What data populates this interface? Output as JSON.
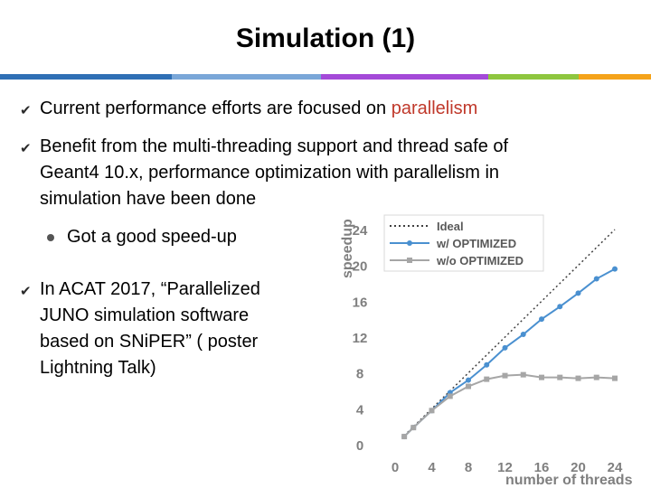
{
  "slide": {
    "title": "Simulation (1)",
    "accent_colors": [
      "#2f6fb5",
      "#7aa7d8",
      "#a44ad8",
      "#8ec63f",
      "#f5a31a"
    ]
  },
  "bullets": [
    {
      "icon": "checkmark-v-bullet-icon",
      "text_before": "Current performance efforts are focused on ",
      "highlight": "parallelism",
      "highlight_color": "#c0392b"
    },
    {
      "icon": "checkmark-v-bullet-icon",
      "lines": [
        "Benefit from the multi-threading support and thread safe of",
        "Geant4 10.x, performance optimization with parallelism in",
        "simulation have been done"
      ]
    },
    {
      "icon": "round-dot-bullet-icon",
      "text": "Got a good speed-up"
    },
    {
      "icon": "checkmark-v-bullet-icon",
      "lines": [
        "In ACAT 2017, “Parallelized",
        "JUNO simulation software",
        "based on SNiPER” ( poster",
        "Lightning Talk)"
      ]
    }
  ],
  "chart_data": {
    "type": "line",
    "xlabel": "number of threads",
    "ylabel": "speedup",
    "xlim": [
      0,
      24
    ],
    "ylim": [
      0,
      24
    ],
    "xticks": [
      0,
      4,
      8,
      12,
      16,
      20,
      24
    ],
    "yticks": [
      0,
      4,
      8,
      12,
      16,
      20,
      24
    ],
    "grid": false,
    "legend_position": "top-left",
    "series": [
      {
        "name": "Ideal",
        "color": "#404040",
        "style": "dotted",
        "x": [
          1,
          24
        ],
        "y": [
          1,
          24
        ]
      },
      {
        "name": "w/ OPTIMIZED",
        "color": "#4a90d0",
        "style": "solid",
        "x": [
          1,
          2,
          4,
          6,
          8,
          10,
          12,
          14,
          16,
          18,
          20,
          22,
          24
        ],
        "y": [
          0.9,
          1.9,
          3.8,
          5.8,
          7.2,
          8.9,
          10.8,
          12.3,
          14.0,
          15.4,
          16.9,
          18.5,
          19.6
        ]
      },
      {
        "name": "w/o OPTIMIZED",
        "color": "#a6a6a6",
        "style": "solid",
        "x": [
          1,
          2,
          4,
          6,
          8,
          10,
          12,
          14,
          16,
          18,
          20,
          22,
          24
        ],
        "y": [
          0.9,
          1.9,
          3.8,
          5.4,
          6.5,
          7.3,
          7.7,
          7.8,
          7.5,
          7.5,
          7.4,
          7.5,
          7.4
        ]
      }
    ]
  }
}
